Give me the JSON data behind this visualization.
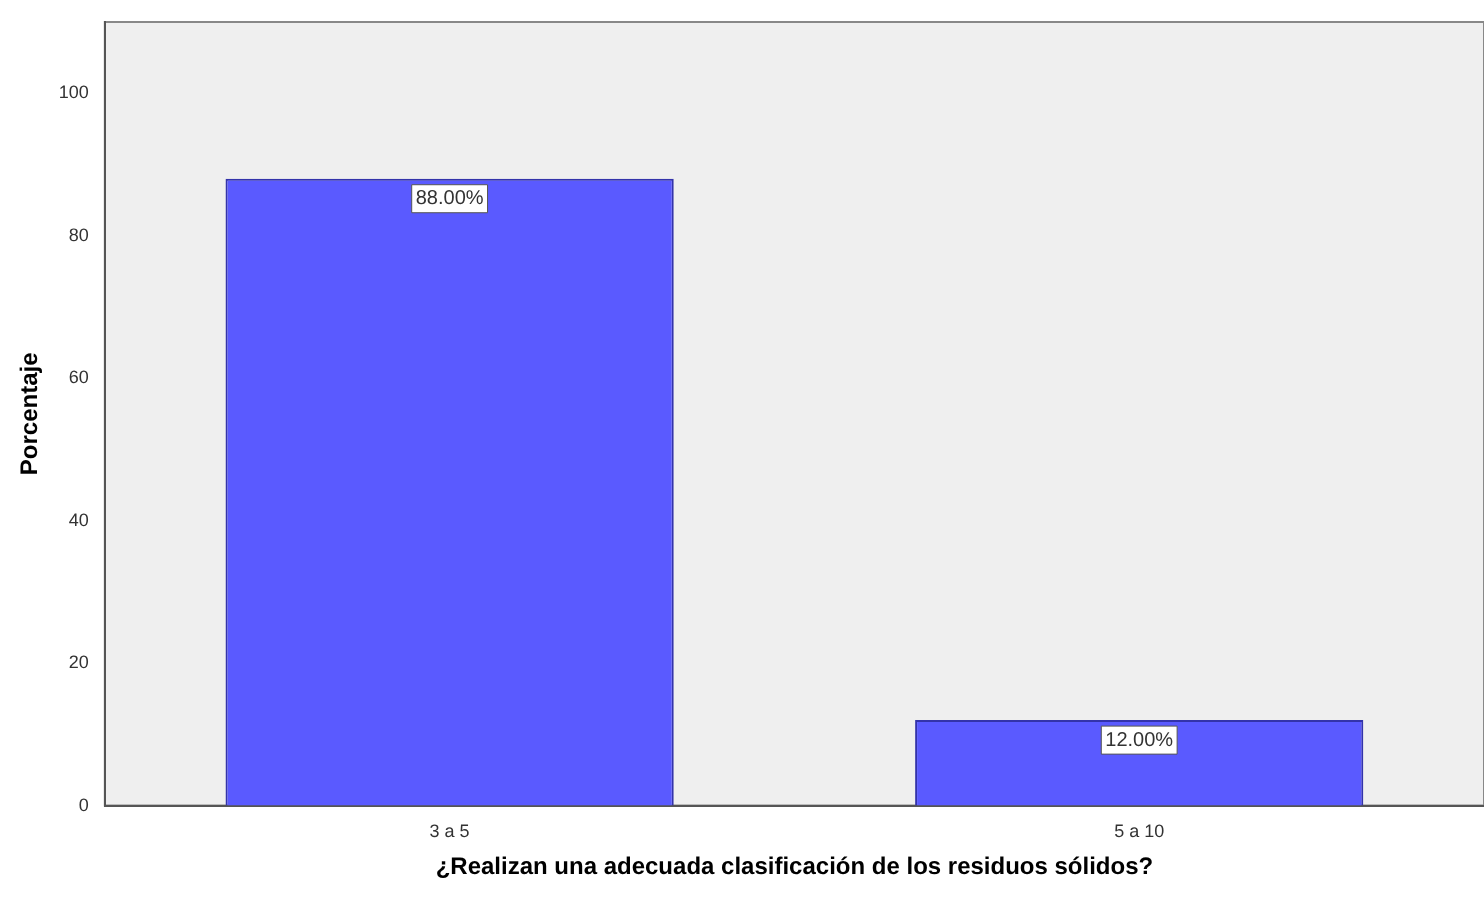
{
  "chart_data": {
    "type": "bar",
    "xlabel": "¿Realizan una adecuada clasificación de los residuos sólidos?",
    "ylabel": "Porcentaje",
    "categories": [
      "3 a 5",
      "5 a 10"
    ],
    "values": [
      88,
      12
    ],
    "value_labels": [
      "88.00%",
      "12.00%"
    ],
    "color": "#5a5aff",
    "ylim": [
      0,
      110
    ],
    "yticks": [
      0,
      20,
      40,
      60,
      80,
      100
    ],
    "grid": false,
    "legend": false
  }
}
